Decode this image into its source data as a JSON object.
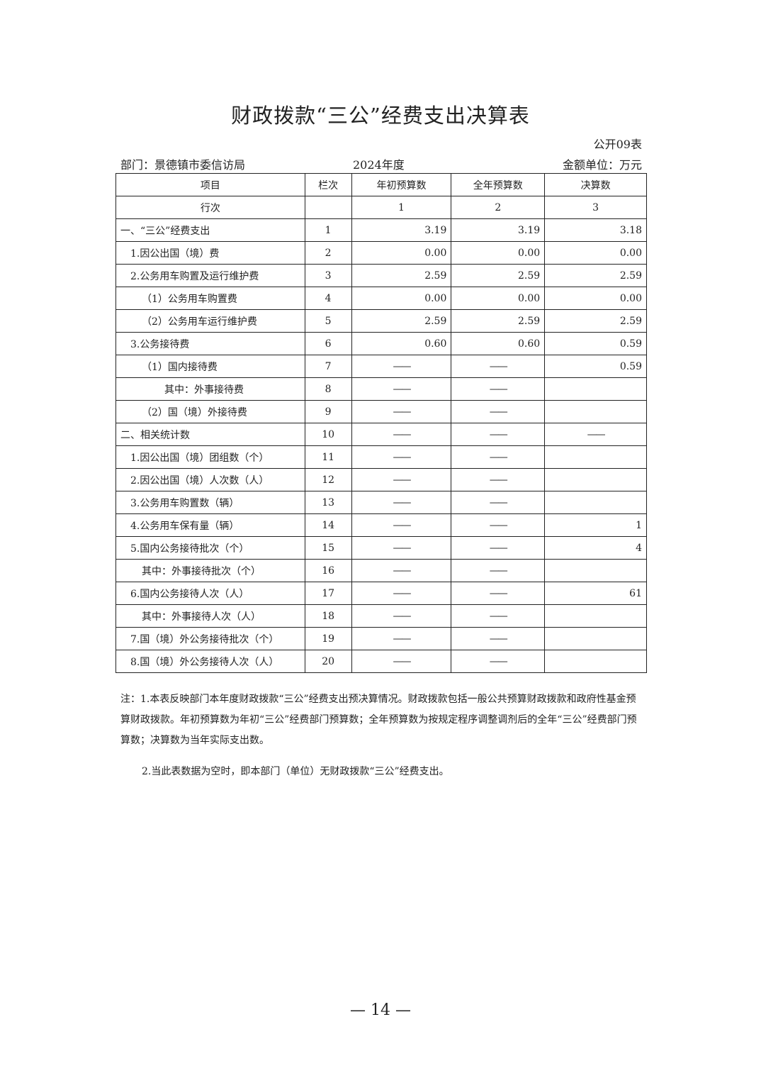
{
  "title": "财政拨款“三公”经费支出决算表",
  "form_no": "公开09表",
  "department": "部门：景德镇市委信访局",
  "year": "2024年度",
  "unit": "金额单位：万元",
  "table": {
    "headers": [
      "项目",
      "栏次",
      "年初预算数",
      "全年预算数",
      "决算数"
    ],
    "index_row": [
      "行次",
      "",
      "1",
      "2",
      "3"
    ],
    "rows": [
      {
        "item": "一、“三公”经费支出",
        "indent": 0,
        "no": "1",
        "c1": "3.19",
        "c2": "3.19",
        "c3": "3.18"
      },
      {
        "item": "1.因公出国（境）费",
        "indent": 1,
        "no": "2",
        "c1": "0.00",
        "c2": "0.00",
        "c3": "0.00"
      },
      {
        "item": "2.公务用车购置及运行维护费",
        "indent": 1,
        "no": "3",
        "c1": "2.59",
        "c2": "2.59",
        "c3": "2.59"
      },
      {
        "item": "（1）公务用车购置费",
        "indent": 2,
        "no": "4",
        "c1": "0.00",
        "c2": "0.00",
        "c3": "0.00"
      },
      {
        "item": "（2）公务用车运行维护费",
        "indent": 2,
        "no": "5",
        "c1": "2.59",
        "c2": "2.59",
        "c3": "2.59"
      },
      {
        "item": "3.公务接待费",
        "indent": 1,
        "no": "6",
        "c1": "0.60",
        "c2": "0.60",
        "c3": "0.59"
      },
      {
        "item": "（1）国内接待费",
        "indent": 2,
        "no": "7",
        "c1": "——",
        "c2": "——",
        "c3": "0.59"
      },
      {
        "item": "其中：外事接待费",
        "indent": 3,
        "no": "8",
        "c1": "——",
        "c2": "——",
        "c3": ""
      },
      {
        "item": "（2）国（境）外接待费",
        "indent": 2,
        "no": "9",
        "c1": "——",
        "c2": "——",
        "c3": ""
      },
      {
        "item": "二、相关统计数",
        "indent": 0,
        "no": "10",
        "c1": "——",
        "c2": "——",
        "c3": "——"
      },
      {
        "item": "1.因公出国（境）团组数（个）",
        "indent": 1,
        "no": "11",
        "c1": "——",
        "c2": "——",
        "c3": ""
      },
      {
        "item": "2.因公出国（境）人次数（人）",
        "indent": 1,
        "no": "12",
        "c1": "——",
        "c2": "——",
        "c3": ""
      },
      {
        "item": "3.公务用车购置数（辆）",
        "indent": 1,
        "no": "13",
        "c1": "——",
        "c2": "——",
        "c3": ""
      },
      {
        "item": "4.公务用车保有量（辆）",
        "indent": 1,
        "no": "14",
        "c1": "——",
        "c2": "——",
        "c3": "1"
      },
      {
        "item": "5.国内公务接待批次（个）",
        "indent": 1,
        "no": "15",
        "c1": "——",
        "c2": "——",
        "c3": "4"
      },
      {
        "item": "其中：外事接待批次（个）",
        "indent": 2,
        "no": "16",
        "c1": "——",
        "c2": "——",
        "c3": ""
      },
      {
        "item": "6.国内公务接待人次（人）",
        "indent": 1,
        "no": "17",
        "c1": "——",
        "c2": "——",
        "c3": "61"
      },
      {
        "item": "其中：外事接待人次（人）",
        "indent": 2,
        "no": "18",
        "c1": "——",
        "c2": "——",
        "c3": ""
      },
      {
        "item": "7.国（境）外公务接待批次（个）",
        "indent": 1,
        "no": "19",
        "c1": "——",
        "c2": "——",
        "c3": ""
      },
      {
        "item": "8.国（境）外公务接待人次（人）",
        "indent": 1,
        "no": "20",
        "c1": "——",
        "c2": "——",
        "c3": ""
      }
    ]
  },
  "notes": {
    "note1": "注：1.本表反映部门本年度财政拨款“三公”经费支出预决算情况。财政拨款包括一般公共预算财政拨款和政府性基金预算财政拨款。年初预算数为年初“三公”经费部门预算数；全年预算数为按规定程序调整调剂后的全年“三公”经费部门预算数；决算数为当年实际支出数。",
    "note2": "2.当此表数据为空时，即本部门（单位）无财政拨款“三公”经费支出。"
  },
  "page_number": "— 14 —"
}
